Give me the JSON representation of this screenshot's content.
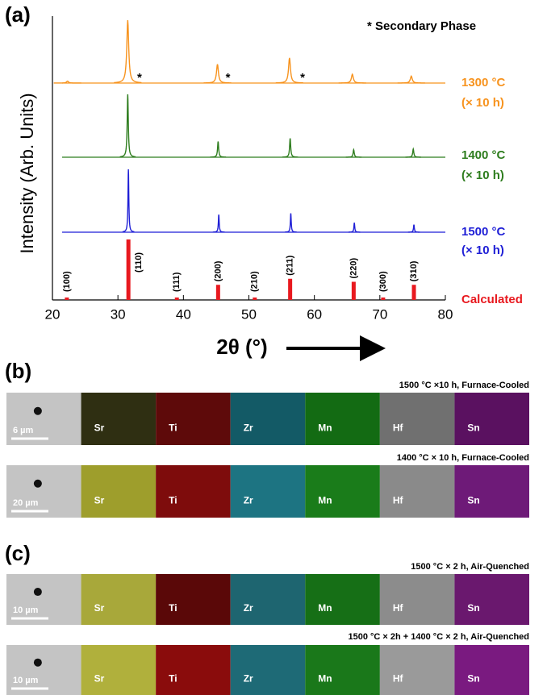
{
  "chart_data": {
    "type": "xrd",
    "panel_label": "(a)",
    "note": "* Secondary Phase",
    "xlabel": "2θ (°)",
    "ylabel": "Intensity (Arb. Units)",
    "xlim": [
      20,
      80
    ],
    "xticks": [
      20,
      30,
      40,
      50,
      60,
      70,
      80
    ],
    "series": [
      {
        "name": "1300 °C",
        "subtitle": "(× 10 h)",
        "color": "#f7931e",
        "style": "line",
        "x": [
          22.3,
          31.5,
          45.2,
          56.2,
          65.8,
          74.8
        ],
        "values": [
          3,
          100,
          30,
          40,
          14,
          11
        ],
        "marker": "*",
        "marker_x": [
          33.3,
          46.8,
          58.2
        ]
      },
      {
        "name": "1400 °C",
        "subtitle": "(× 10 h)",
        "color": "#2e7d1e",
        "style": "line",
        "x": [
          31.5,
          45.3,
          56.3,
          66.0,
          75.1
        ],
        "values": [
          100,
          25,
          30,
          12,
          13
        ]
      },
      {
        "name": "1500 °C",
        "subtitle": "(× 10 h)",
        "color": "#1f1fd6",
        "style": "line",
        "x": [
          31.6,
          45.4,
          56.4,
          66.1,
          75.2
        ],
        "values": [
          100,
          28,
          30,
          15,
          12
        ]
      },
      {
        "name": "Calculated",
        "color": "#e8191f",
        "style": "stick",
        "x": [
          22.2,
          31.6,
          39.0,
          45.3,
          50.9,
          56.3,
          66.0,
          70.5,
          75.2
        ],
        "values": [
          3,
          100,
          3,
          25,
          1,
          35,
          30,
          1,
          25
        ],
        "labels": [
          "(100)",
          "(110)",
          "(111)",
          "(200)",
          "(210)",
          "(211)",
          "(220)",
          "(300)",
          "(310)"
        ]
      }
    ]
  },
  "panels": [
    {
      "label": "(b)",
      "rows": [
        {
          "caption": "1500 °C ×10 h, Furnace-Cooled",
          "scale_bar": "6 µm",
          "maps": [
            "Sr",
            "Ti",
            "Zr",
            "Mn",
            "Hf",
            "Sn"
          ]
        },
        {
          "caption": "1400 °C × 10 h, Furnace-Cooled",
          "scale_bar": "20 µm",
          "maps": [
            "Sr",
            "Ti",
            "Zr",
            "Mn",
            "Hf",
            "Sn"
          ]
        }
      ]
    },
    {
      "label": "(c)",
      "rows": [
        {
          "caption": "1500 °C × 2 h, Air-Quenched",
          "scale_bar": "10 µm",
          "maps": [
            "Sr",
            "Ti",
            "Zr",
            "Mn",
            "Hf",
            "Sn"
          ]
        },
        {
          "caption": "1500 °C × 2h + 1400 °C × 2 h, Air-Quenched",
          "scale_bar": "10 µm",
          "maps": [
            "Sr",
            "Ti",
            "Zr",
            "Mn",
            "Hf",
            "Sn"
          ]
        }
      ]
    }
  ]
}
